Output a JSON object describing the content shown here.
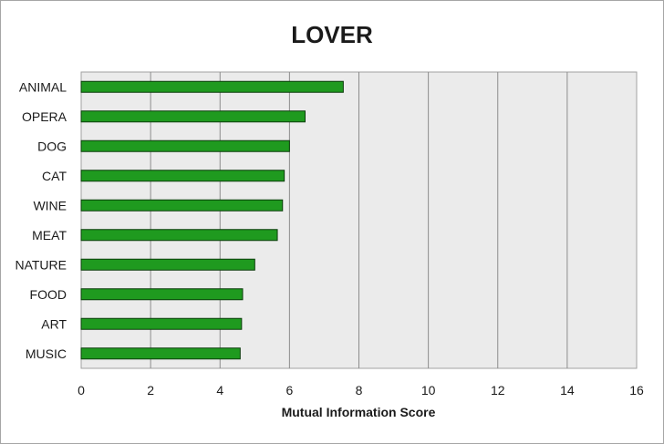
{
  "chart_data": {
    "type": "bar",
    "orientation": "horizontal",
    "title": "LOVER",
    "xlabel": "Mutual Information Score",
    "ylabel": "",
    "categories": [
      "ANIMAL",
      "OPERA",
      "DOG",
      "CAT",
      "WINE",
      "MEAT",
      "NATURE",
      "FOOD",
      "ART",
      "MUSIC"
    ],
    "values": [
      7.55,
      6.45,
      6.0,
      5.85,
      5.8,
      5.65,
      5.0,
      4.65,
      4.62,
      4.58
    ],
    "xlim": [
      0,
      16
    ],
    "xticks": [
      "0",
      "2",
      "4",
      "6",
      "8",
      "10",
      "12",
      "14",
      "16"
    ],
    "grid": true,
    "legend": "none",
    "colors": {
      "bar_fill": "#1f9a1f",
      "bar_stroke": "#0b3d0b",
      "plot_background": "#ebebeb",
      "grid": "#8c8c8c"
    }
  }
}
